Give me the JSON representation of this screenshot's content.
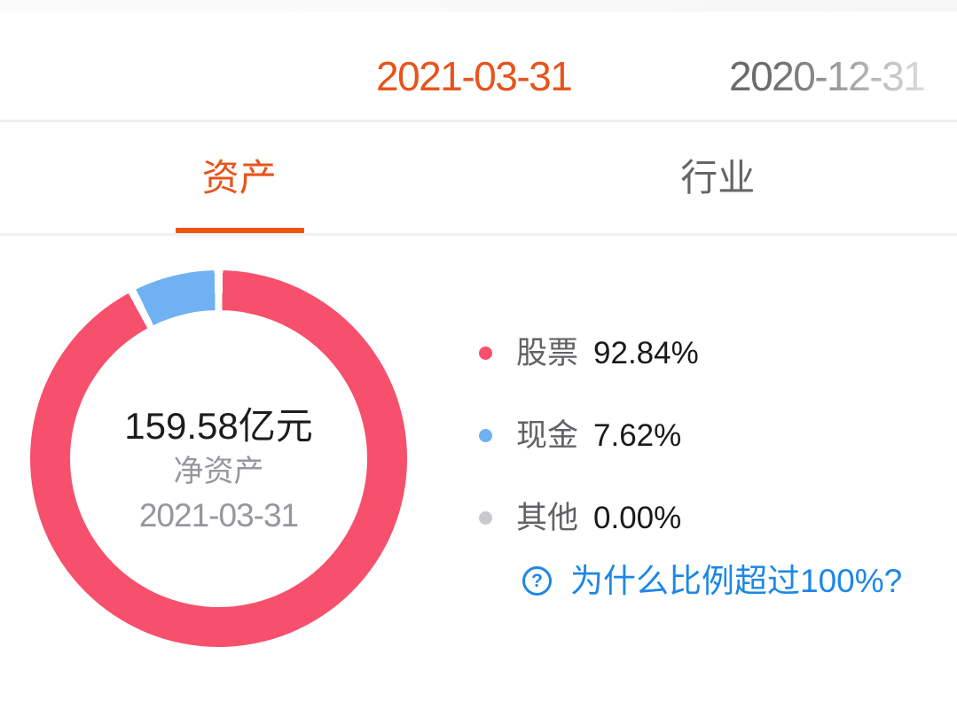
{
  "dates": {
    "selected": "2021-03-31",
    "previous": "2020-12-31"
  },
  "tabs": [
    {
      "id": "assets",
      "label": "资产",
      "active": true
    },
    {
      "id": "industry",
      "label": "行业",
      "active": false
    }
  ],
  "donut_center": {
    "value": "159.58亿元",
    "label": "净资产",
    "date": "2021-03-31"
  },
  "legend": [
    {
      "label": "股票",
      "value": "92.84%",
      "color": "#f6506c"
    },
    {
      "label": "现金",
      "value": "7.62%",
      "color": "#6fb1f3"
    },
    {
      "label": "其他",
      "value": "0.00%",
      "color": "#c9c9cd"
    }
  ],
  "help": {
    "icon": "question-circle-icon",
    "icon_glyph": "?",
    "text": "为什么比例超过100%?"
  },
  "colors": {
    "accent_orange": "#e7541c",
    "underline_orange": "#ee5410",
    "link_blue": "#1d87e6",
    "inactive_gray": "#666666",
    "muted_gray": "#95979c"
  },
  "chart_data": {
    "type": "pie",
    "donut": true,
    "labels": [
      "股票",
      "现金",
      "其他"
    ],
    "values": [
      92.84,
      7.62,
      0.0
    ],
    "unit": "%",
    "colors": [
      "#f6506c",
      "#6fb1f3",
      "#c9c9cd"
    ],
    "start_angle_deg": 0,
    "direction": "clockwise",
    "center_text": [
      "159.58亿元",
      "净资产",
      "2021-03-31"
    ],
    "legend_position": "right",
    "note": "values sum to 100.46%, link explains why ratio exceeds 100%"
  }
}
